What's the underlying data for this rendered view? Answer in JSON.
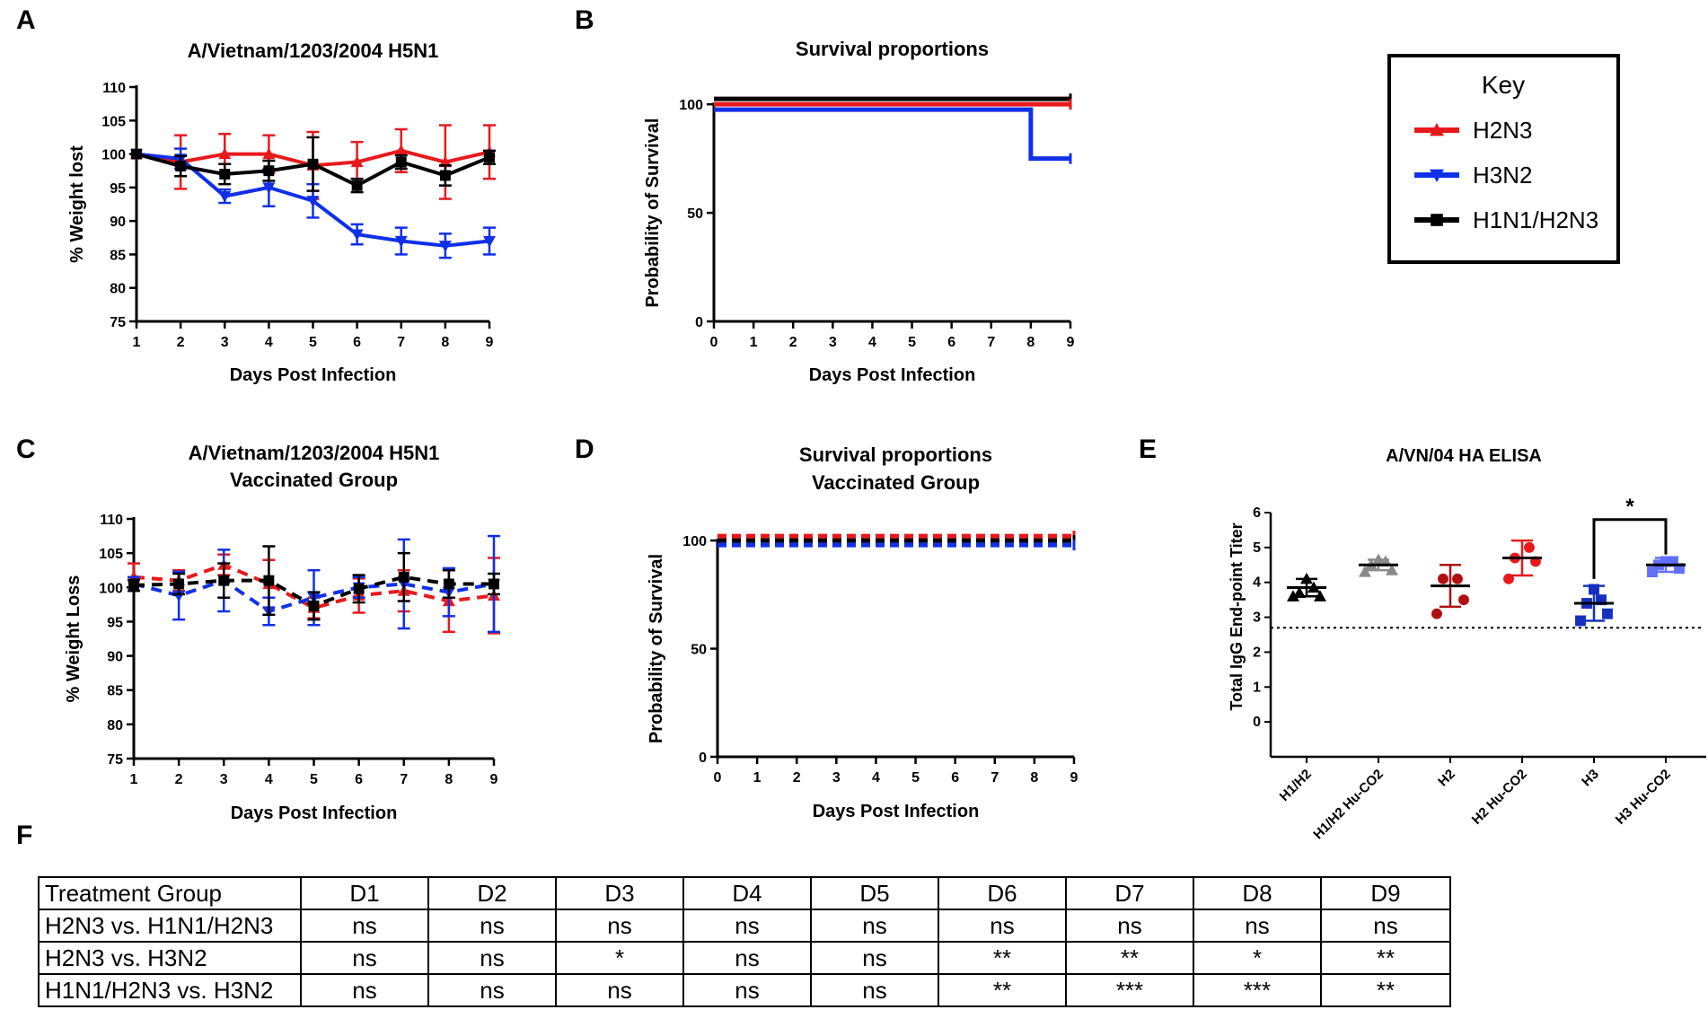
{
  "panel_letters": {
    "a": "A",
    "b": "B",
    "c": "C",
    "d": "D",
    "e": "E",
    "f": "F"
  },
  "key": {
    "title": "Key",
    "entries": [
      {
        "label": "H2N3",
        "color": "#e8191c",
        "marker": "triangle-up"
      },
      {
        "label": "H3N2",
        "color": "#1030e8",
        "marker": "triangle-down"
      },
      {
        "label": "H1N1/H2N3",
        "color": "#000000",
        "marker": "square"
      }
    ]
  },
  "chart_data": [
    {
      "id": "A",
      "type": "line",
      "title": "A/Vietnam/1203/2004 H5N1",
      "xlabel": "Days Post Infection",
      "ylabel": "% Weight lost",
      "xlim": [
        1,
        9
      ],
      "ylim": [
        75,
        110
      ],
      "xticks": [
        1,
        2,
        3,
        4,
        5,
        6,
        7,
        8,
        9
      ],
      "yticks": [
        75,
        80,
        85,
        90,
        95,
        100,
        105,
        110
      ],
      "dashed": false,
      "x": [
        1,
        2,
        3,
        4,
        5,
        6,
        7,
        8,
        9
      ],
      "series": [
        {
          "name": "H2N3",
          "color": "#e8191c",
          "marker": "triangle-up",
          "values": [
            100,
            98.8,
            100,
            100,
            98.3,
            98.8,
            100.5,
            98.8,
            100.3
          ],
          "errors": [
            0,
            4,
            3,
            2.8,
            5,
            3,
            3.2,
            5.5,
            4
          ]
        },
        {
          "name": "H3N2",
          "color": "#1030e8",
          "marker": "triangle-down",
          "values": [
            100,
            99.3,
            93.7,
            95,
            93,
            88,
            87,
            86.3,
            87
          ],
          "errors": [
            0,
            1.5,
            1,
            2.8,
            2.5,
            1.5,
            2,
            1.8,
            2
          ]
        },
        {
          "name": "H1N1/H2N3",
          "color": "#000000",
          "marker": "square",
          "values": [
            100,
            98.2,
            97,
            97.5,
            98.5,
            95.3,
            98.8,
            96.8,
            99.5
          ],
          "errors": [
            0,
            1.5,
            1.5,
            1.5,
            4,
            1,
            1,
            1.5,
            1
          ]
        }
      ]
    },
    {
      "id": "B",
      "type": "line",
      "title": "Survival proportions",
      "xlabel": "Days Post Infection",
      "ylabel": "Probability of Survival",
      "xlim": [
        0,
        9
      ],
      "ylim": [
        0,
        110
      ],
      "xticks": [
        0,
        1,
        2,
        3,
        4,
        5,
        6,
        7,
        8,
        9
      ],
      "yticks": [
        0,
        50,
        100
      ],
      "step": true,
      "series": [
        {
          "name": "H1N1/H2N3",
          "color": "#000000",
          "points": [
            [
              0,
              100
            ],
            [
              9,
              100
            ]
          ]
        },
        {
          "name": "H2N3",
          "color": "#e8191c",
          "points": [
            [
              0,
              100
            ],
            [
              9,
              100
            ]
          ]
        },
        {
          "name": "H3N2",
          "color": "#1030e8",
          "points": [
            [
              0,
              100
            ],
            [
              8,
              100
            ],
            [
              8,
              75
            ],
            [
              9,
              75
            ]
          ]
        }
      ]
    },
    {
      "id": "C",
      "type": "line",
      "title": "A/Vietnam/1203/2004 H5N1",
      "subtitle": "Vaccinated Group",
      "xlabel": "Days Post Infection",
      "ylabel": "% Weight Loss",
      "xlim": [
        1,
        9
      ],
      "ylim": [
        75,
        110
      ],
      "xticks": [
        1,
        2,
        3,
        4,
        5,
        6,
        7,
        8,
        9
      ],
      "yticks": [
        75,
        80,
        85,
        90,
        95,
        100,
        105,
        110
      ],
      "dashed": true,
      "x": [
        1,
        2,
        3,
        4,
        5,
        6,
        7,
        8,
        9
      ],
      "series": [
        {
          "name": "H2N3",
          "color": "#e8191c",
          "marker": "triangle-up",
          "values": [
            101.5,
            101,
            103.3,
            100.5,
            97,
            98.8,
            99.5,
            98,
            98.8
          ],
          "errors": [
            2,
            1.5,
            1.5,
            3.5,
            1.5,
            2.5,
            3,
            4.5,
            5.5
          ]
        },
        {
          "name": "H3N2",
          "color": "#1030e8",
          "marker": "triangle-down",
          "values": [
            100.5,
            98.8,
            101,
            96.5,
            98.5,
            100,
            100.5,
            99.3,
            100.5
          ],
          "errors": [
            1,
            3.5,
            4.5,
            2,
            4,
            1.5,
            6.5,
            3.5,
            7
          ]
        },
        {
          "name": "H1N1/H2N3",
          "color": "#000000",
          "marker": "square",
          "values": [
            100.3,
            100.5,
            101,
            101,
            97.3,
            99.8,
            101.5,
            100.5,
            100.5
          ],
          "errors": [
            0.8,
            1.5,
            2.5,
            5,
            2,
            2,
            3.5,
            2,
            1.5
          ]
        }
      ]
    },
    {
      "id": "D",
      "type": "line",
      "title": "Survival proportions",
      "subtitle": "Vaccinated Group",
      "xlabel": "Days Post Infection",
      "ylabel": "Probability of Survival",
      "xlim": [
        0,
        9
      ],
      "ylim": [
        0,
        110
      ],
      "xticks": [
        0,
        1,
        2,
        3,
        4,
        5,
        6,
        7,
        8,
        9
      ],
      "yticks": [
        0,
        50,
        100
      ],
      "step": true,
      "dashed": true,
      "series": [
        {
          "name": "H2N3",
          "color": "#e8191c",
          "points": [
            [
              0,
              100
            ],
            [
              9,
              100
            ]
          ]
        },
        {
          "name": "H1N1/H2N3",
          "color": "#000000",
          "points": [
            [
              0,
              100
            ],
            [
              9,
              100
            ]
          ]
        },
        {
          "name": "H3N2",
          "color": "#1030e8",
          "points": [
            [
              0,
              100
            ],
            [
              9,
              100
            ]
          ]
        }
      ]
    },
    {
      "id": "E",
      "type": "scatter",
      "title": "A/VN/04 HA ELISA",
      "xlabel": "",
      "ylabel": "Total IgG End-point Titer",
      "ylim": [
        -1,
        6
      ],
      "yticks": [
        0,
        1,
        2,
        3,
        4,
        5,
        6
      ],
      "categories": [
        "H1/H2",
        "H1/H2 Hu-CO2",
        "H2",
        "H2 Hu-CO2",
        "H3",
        "H3 Hu-CO2"
      ],
      "detection_limit": 2.7,
      "significance": {
        "between": [
          "H3",
          "H3 Hu-CO2"
        ],
        "label": "*"
      },
      "groups": [
        {
          "name": "H1/H2",
          "color": "#000000",
          "marker": "triangle-up",
          "mean": 3.85,
          "sd": 0.25,
          "points": [
            3.6,
            3.6,
            3.7,
            3.85,
            4.1
          ]
        },
        {
          "name": "H1/H2 Hu-CO2",
          "color": "#8a8a8a",
          "marker": "triangle-up",
          "mean": 4.5,
          "sd": 0.15,
          "points": [
            4.3,
            4.35,
            4.5,
            4.6,
            4.65
          ]
        },
        {
          "name": "H2",
          "color": "#b01010",
          "marker": "circle",
          "mean": 3.9,
          "sd": 0.6,
          "points": [
            3.1,
            3.5,
            4.1,
            4.1
          ]
        },
        {
          "name": "H2 Hu-CO2",
          "color": "#e8191c",
          "marker": "circle",
          "mean": 4.7,
          "sd": 0.5,
          "points": [
            4.1,
            4.6,
            4.7,
            5.0
          ]
        },
        {
          "name": "H3",
          "color": "#1530c0",
          "marker": "square",
          "mean": 3.4,
          "sd": 0.5,
          "points": [
            2.9,
            3.1,
            3.4,
            3.5,
            3.8
          ]
        },
        {
          "name": "H3 Hu-CO2",
          "color": "#6070ff",
          "marker": "square",
          "mean": 4.5,
          "sd": 0.2,
          "points": [
            4.3,
            4.4,
            4.5,
            4.6,
            4.6
          ]
        }
      ]
    }
  ],
  "table": {
    "header": [
      "Treatment Group",
      "D1",
      "D2",
      "D3",
      "D4",
      "D5",
      "D6",
      "D7",
      "D8",
      "D9"
    ],
    "rows": [
      [
        "H2N3 vs. H1N1/H2N3",
        "ns",
        "ns",
        "ns",
        "ns",
        "ns",
        "ns",
        "ns",
        "ns",
        "ns"
      ],
      [
        "H2N3 vs. H3N2",
        "ns",
        "ns",
        "*",
        "ns",
        "ns",
        "**",
        "**",
        "*",
        "**"
      ],
      [
        "H1N1/H2N3 vs. H3N2",
        "ns",
        "ns",
        "ns",
        "ns",
        "ns",
        "**",
        "***",
        "***",
        "**"
      ]
    ]
  }
}
